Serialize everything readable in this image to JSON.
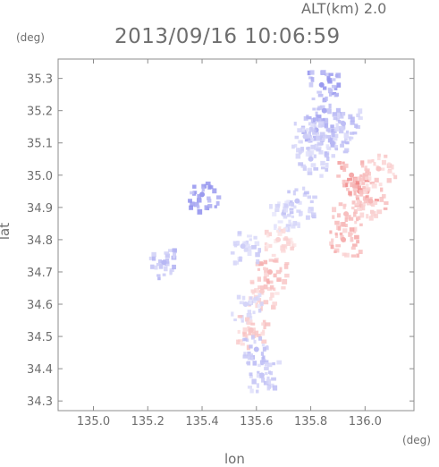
{
  "header": {
    "altitude": "ALT(km) 2.0",
    "timestamp": "2013/09/16 10:06:59"
  },
  "chart_data": {
    "type": "scatter",
    "title": "2013/09/16 10:06:59",
    "subtitle": "ALT(km) 2.0",
    "xlabel": "lon",
    "ylabel": "lat",
    "xunit": "(deg)",
    "yunit": "(deg)",
    "xlim": [
      134.87,
      136.18
    ],
    "ylim": [
      34.27,
      35.36
    ],
    "x_ticks": [
      "135.0",
      "135.2",
      "135.4",
      "135.6",
      "135.8",
      "136.0"
    ],
    "y_ticks": [
      "34.3",
      "34.4",
      "34.5",
      "34.6",
      "34.7",
      "34.8",
      "34.9",
      "35.0",
      "35.1",
      "35.2",
      "35.3"
    ],
    "grid": false,
    "colors": {
      "toward": "#6f6fe8",
      "away": "#ee6f6f",
      "axis": "#8c8c8c"
    },
    "series": [
      {
        "values": [
          {
            "lon": 135.82,
            "lat": 35.14,
            "v": -0.55
          },
          {
            "lon": 135.85,
            "lat": 35.2,
            "v": -0.6
          },
          {
            "lon": 135.88,
            "lat": 35.1,
            "v": -0.5
          },
          {
            "lon": 135.8,
            "lat": 35.05,
            "v": -0.4
          },
          {
            "lon": 135.92,
            "lat": 35.16,
            "v": -0.45
          },
          {
            "lon": 135.78,
            "lat": 35.12,
            "v": -0.35
          },
          {
            "lon": 135.84,
            "lat": 35.28,
            "v": -0.7
          },
          {
            "lon": 135.95,
            "lat": 35.0,
            "v": 0.6
          },
          {
            "lon": 135.98,
            "lat": 34.95,
            "v": 0.75
          },
          {
            "lon": 136.02,
            "lat": 34.92,
            "v": 0.5
          },
          {
            "lon": 135.93,
            "lat": 34.88,
            "v": 0.45
          },
          {
            "lon": 135.92,
            "lat": 34.8,
            "v": 0.55
          },
          {
            "lon": 136.05,
            "lat": 35.02,
            "v": 0.4
          },
          {
            "lon": 135.62,
            "lat": 34.64,
            "v": 0.35
          },
          {
            "lon": 135.56,
            "lat": 34.6,
            "v": -0.3
          },
          {
            "lon": 135.65,
            "lat": 34.7,
            "v": 0.5
          },
          {
            "lon": 135.58,
            "lat": 34.52,
            "v": 0.4
          },
          {
            "lon": 135.6,
            "lat": 34.46,
            "v": -0.45
          },
          {
            "lon": 135.4,
            "lat": 34.94,
            "v": -0.7
          },
          {
            "lon": 135.26,
            "lat": 34.73,
            "v": -0.5
          },
          {
            "lon": 135.62,
            "lat": 34.38,
            "v": -0.4
          },
          {
            "lon": 135.7,
            "lat": 34.88,
            "v": -0.3
          },
          {
            "lon": 135.75,
            "lat": 34.92,
            "v": -0.4
          },
          {
            "lon": 135.68,
            "lat": 34.8,
            "v": 0.3
          },
          {
            "lon": 135.55,
            "lat": 34.78,
            "v": -0.35
          }
        ]
      }
    ]
  }
}
